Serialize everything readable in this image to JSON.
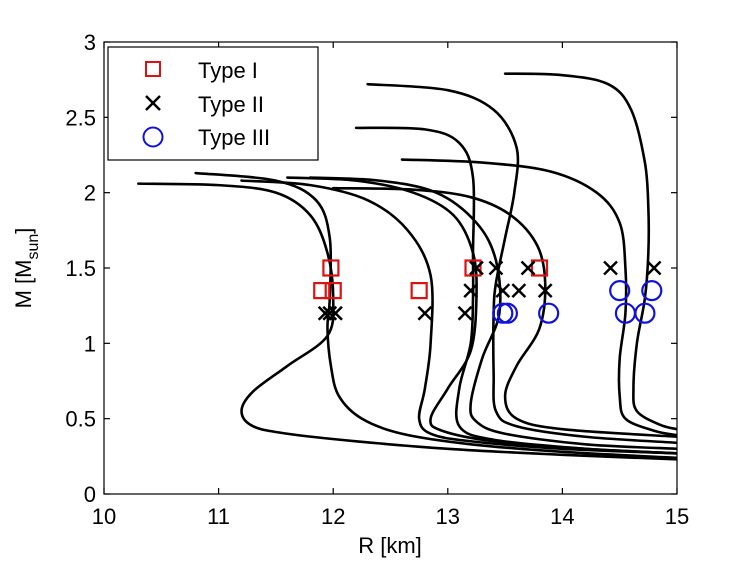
{
  "chart_data": {
    "type": "scatter",
    "title": "",
    "xlabel": "R [km]",
    "ylabel_main": "M [M",
    "ylabel_sub": "sun",
    "ylabel_close": "]",
    "xlim": [
      10,
      15
    ],
    "ylim": [
      0,
      3
    ],
    "xticks": [
      "10",
      "11",
      "12",
      "13",
      "14",
      "15"
    ],
    "yticks": [
      "0",
      "0.5",
      "1",
      "1.5",
      "2",
      "2.5",
      "3"
    ],
    "grid": false,
    "legend_position": "top-left",
    "curve_color": "#000000",
    "curves": [
      [
        [
          10.3,
          2.06
        ],
        [
          11.0,
          2.05
        ],
        [
          11.5,
          2.0
        ],
        [
          11.8,
          1.85
        ],
        [
          11.95,
          1.6
        ],
        [
          12.0,
          1.3
        ],
        [
          11.95,
          1.05
        ],
        [
          11.6,
          0.85
        ],
        [
          11.3,
          0.68
        ],
        [
          11.2,
          0.55
        ],
        [
          11.3,
          0.45
        ],
        [
          11.6,
          0.4
        ],
        [
          12.2,
          0.35
        ],
        [
          13.0,
          0.3
        ],
        [
          14.0,
          0.26
        ],
        [
          15.0,
          0.23
        ]
      ],
      [
        [
          10.8,
          2.13
        ],
        [
          11.5,
          2.08
        ],
        [
          11.85,
          1.95
        ],
        [
          11.97,
          1.7
        ],
        [
          11.97,
          1.3
        ],
        [
          11.95,
          1.1
        ],
        [
          11.98,
          0.85
        ],
        [
          12.05,
          0.65
        ],
        [
          12.25,
          0.5
        ],
        [
          12.6,
          0.4
        ],
        [
          13.2,
          0.33
        ],
        [
          14.0,
          0.28
        ],
        [
          15.0,
          0.24
        ]
      ],
      [
        [
          11.2,
          2.08
        ],
        [
          11.8,
          2.05
        ],
        [
          12.3,
          1.95
        ],
        [
          12.65,
          1.75
        ],
        [
          12.85,
          1.45
        ],
        [
          12.85,
          1.0
        ],
        [
          12.8,
          0.7
        ],
        [
          12.75,
          0.5
        ],
        [
          12.85,
          0.4
        ],
        [
          13.2,
          0.35
        ],
        [
          14.0,
          0.3
        ],
        [
          15.0,
          0.27
        ]
      ],
      [
        [
          11.6,
          2.1
        ],
        [
          12.2,
          2.08
        ],
        [
          12.7,
          2.0
        ],
        [
          13.05,
          1.85
        ],
        [
          13.22,
          1.6
        ],
        [
          13.25,
          1.3
        ],
        [
          13.2,
          0.95
        ],
        [
          13.0,
          0.7
        ],
        [
          12.85,
          0.5
        ],
        [
          12.95,
          0.42
        ],
        [
          13.4,
          0.35
        ],
        [
          14.2,
          0.3
        ],
        [
          15.0,
          0.27
        ]
      ],
      [
        [
          11.8,
          2.1
        ],
        [
          12.4,
          2.08
        ],
        [
          12.9,
          2.0
        ],
        [
          13.25,
          1.8
        ],
        [
          13.42,
          1.55
        ],
        [
          13.45,
          1.2
        ],
        [
          13.3,
          0.9
        ],
        [
          13.2,
          0.6
        ],
        [
          13.25,
          0.48
        ],
        [
          13.5,
          0.4
        ],
        [
          14.2,
          0.33
        ],
        [
          15.0,
          0.3
        ]
      ],
      [
        [
          12.0,
          2.03
        ],
        [
          12.7,
          2.02
        ],
        [
          13.2,
          1.97
        ],
        [
          13.55,
          1.85
        ],
        [
          13.78,
          1.65
        ],
        [
          13.85,
          1.4
        ],
        [
          13.8,
          1.1
        ],
        [
          13.6,
          0.85
        ],
        [
          13.5,
          0.65
        ],
        [
          13.6,
          0.5
        ],
        [
          14.0,
          0.43
        ],
        [
          15.0,
          0.38
        ]
      ],
      [
        [
          12.3,
          2.72
        ],
        [
          13.0,
          2.68
        ],
        [
          13.4,
          2.55
        ],
        [
          13.6,
          2.3
        ],
        [
          13.58,
          2.0
        ],
        [
          13.5,
          1.7
        ],
        [
          13.42,
          1.4
        ],
        [
          13.4,
          1.2
        ],
        [
          13.4,
          0.8
        ],
        [
          13.42,
          0.55
        ],
        [
          13.6,
          0.45
        ],
        [
          14.2,
          0.38
        ],
        [
          15.0,
          0.34
        ]
      ],
      [
        [
          12.2,
          2.43
        ],
        [
          12.8,
          2.42
        ],
        [
          13.1,
          2.33
        ],
        [
          13.22,
          2.1
        ],
        [
          13.22,
          1.6
        ],
        [
          13.22,
          1.3
        ],
        [
          13.2,
          1.0
        ],
        [
          13.1,
          0.7
        ],
        [
          13.1,
          0.45
        ],
        [
          13.4,
          0.36
        ],
        [
          14.2,
          0.3
        ],
        [
          15.0,
          0.27
        ]
      ],
      [
        [
          12.6,
          2.22
        ],
        [
          13.3,
          2.2
        ],
        [
          13.9,
          2.14
        ],
        [
          14.3,
          2.0
        ],
        [
          14.5,
          1.8
        ],
        [
          14.55,
          1.5
        ],
        [
          14.55,
          1.2
        ],
        [
          14.5,
          0.9
        ],
        [
          14.5,
          0.65
        ],
        [
          14.55,
          0.5
        ],
        [
          14.8,
          0.42
        ],
        [
          15.0,
          0.39
        ]
      ],
      [
        [
          13.5,
          2.79
        ],
        [
          14.0,
          2.78
        ],
        [
          14.4,
          2.72
        ],
        [
          14.6,
          2.55
        ],
        [
          14.72,
          2.2
        ],
        [
          14.75,
          1.9
        ],
        [
          14.75,
          1.6
        ],
        [
          14.72,
          1.3
        ],
        [
          14.65,
          1.0
        ],
        [
          14.62,
          0.7
        ],
        [
          14.65,
          0.55
        ],
        [
          14.85,
          0.46
        ],
        [
          15.0,
          0.43
        ]
      ]
    ],
    "series": [
      {
        "name": "Type I",
        "marker": "square",
        "color": "#dd1111",
        "points": [
          [
            11.9,
            1.35
          ],
          [
            12.0,
            1.35
          ],
          [
            11.98,
            1.5
          ],
          [
            12.75,
            1.35
          ],
          [
            13.22,
            1.5
          ],
          [
            13.8,
            1.5
          ]
        ]
      },
      {
        "name": "Type II",
        "marker": "x",
        "color": "#000000",
        "points": [
          [
            11.93,
            1.2
          ],
          [
            11.97,
            1.2
          ],
          [
            12.02,
            1.2
          ],
          [
            12.8,
            1.2
          ],
          [
            13.15,
            1.2
          ],
          [
            13.2,
            1.35
          ],
          [
            13.25,
            1.5
          ],
          [
            13.42,
            1.5
          ],
          [
            13.48,
            1.35
          ],
          [
            13.62,
            1.35
          ],
          [
            13.7,
            1.5
          ],
          [
            13.85,
            1.35
          ],
          [
            14.42,
            1.5
          ],
          [
            14.8,
            1.5
          ]
        ]
      },
      {
        "name": "Type III",
        "marker": "circle",
        "color": "#1111dd",
        "points": [
          [
            13.48,
            1.2
          ],
          [
            13.52,
            1.2
          ],
          [
            13.88,
            1.2
          ],
          [
            14.5,
            1.35
          ],
          [
            14.55,
            1.2
          ],
          [
            14.72,
            1.2
          ],
          [
            14.78,
            1.35
          ]
        ]
      }
    ]
  }
}
